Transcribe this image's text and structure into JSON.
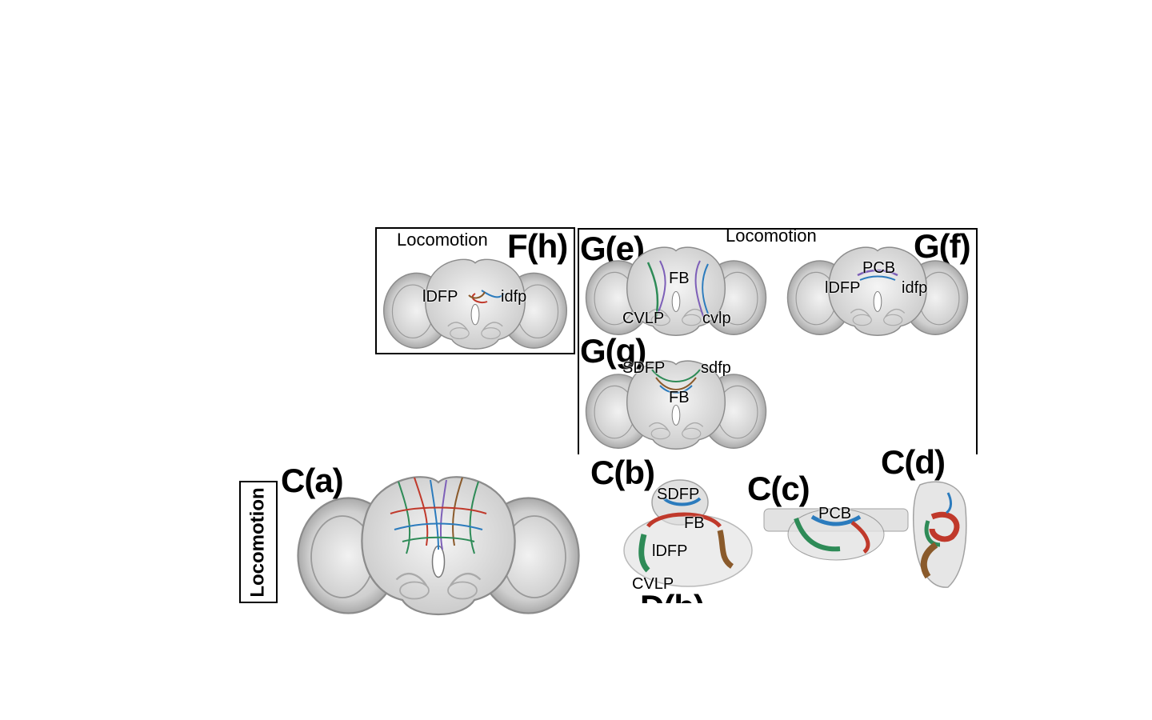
{
  "panels": {
    "F_h": {
      "label": "F(h)",
      "caption": "Locomotion",
      "regions": [
        "lDFP",
        "idfp"
      ]
    },
    "G_e": {
      "label": "G(e)",
      "regions": [
        "FB",
        "CVLP",
        "cvlp"
      ]
    },
    "G_f": {
      "label": "G(f)",
      "regions": [
        "PCB",
        "lDFP",
        "idfp"
      ]
    },
    "G_g": {
      "label": "G(g)",
      "regions": [
        "SDFP",
        "sdfp",
        "FB"
      ]
    },
    "G_group": {
      "caption": "Locomotion"
    },
    "C_a": {
      "label": "C(a)",
      "side_caption": "Locomotion"
    },
    "C_b": {
      "label": "C(b)",
      "regions": [
        "SDFP",
        "FB",
        "lDFP",
        "CVLP"
      ]
    },
    "C_c": {
      "label": "C(c)",
      "regions": [
        "PCB"
      ]
    },
    "C_d": {
      "label": "C(d)"
    },
    "D_b": {
      "label": "D(b)"
    }
  },
  "colors": {
    "brain_fill": "#d9d9d9",
    "brain_edge": "#8c8c8c",
    "frame": "#000000",
    "neurons": [
      "#2e8b57",
      "#c0392b",
      "#2b7bbd",
      "#8a5a2b",
      "#7d5fb8"
    ]
  }
}
